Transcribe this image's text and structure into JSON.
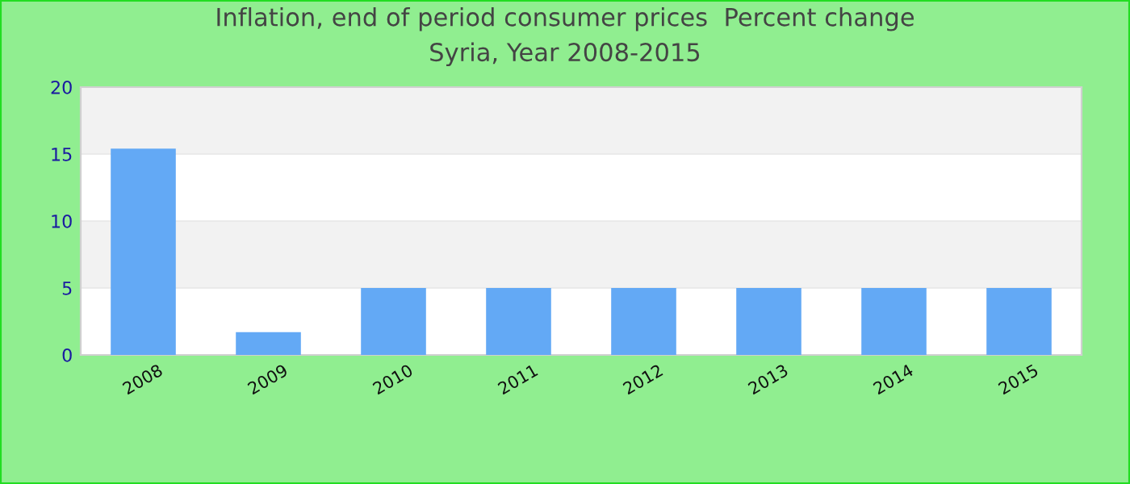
{
  "chart_data": {
    "type": "bar",
    "title": "Inflation, end of period consumer prices  Percent change\nSyria, Year 2008-2015",
    "categories": [
      "2008",
      "2009",
      "2010",
      "2011",
      "2012",
      "2013",
      "2014",
      "2015"
    ],
    "values": [
      15.4,
      1.7,
      5,
      5,
      5,
      5,
      5,
      5
    ],
    "color": "#63a9f5",
    "ylim": [
      0,
      20
    ],
    "yticks": [
      0,
      5,
      10,
      15,
      20
    ],
    "grid": "y",
    "legend": false
  }
}
